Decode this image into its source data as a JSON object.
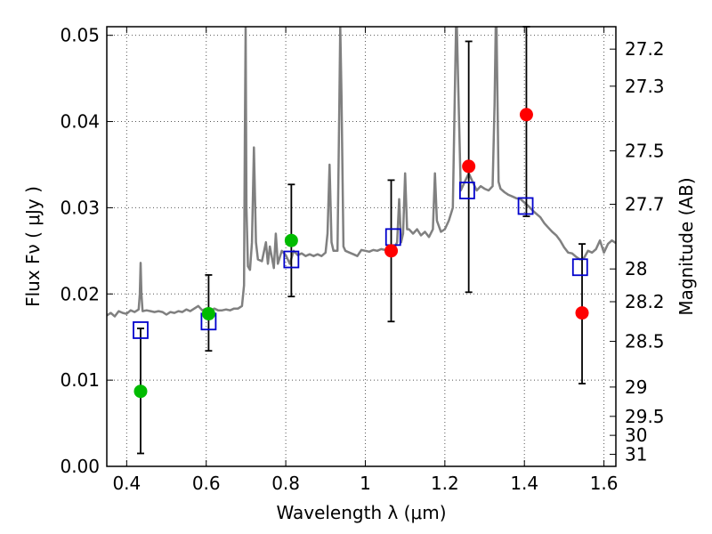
{
  "chart_data": {
    "type": "scatter",
    "xlabel": "Wavelength  λ (μm)",
    "ylabel": "Flux  Fν  ( μJy )",
    "ylabel_right": "Magnitude (AB)",
    "xlim": [
      0.35,
      1.63
    ],
    "ylim": [
      0.0,
      0.051
    ],
    "x_ticks": [
      0.4,
      0.6,
      0.8,
      1.0,
      1.2,
      1.4,
      1.6
    ],
    "x_tick_labels": [
      "0.4",
      "0.6",
      "0.8",
      "1",
      "1.2",
      "1.4",
      "1.6"
    ],
    "y_ticks": [
      0.0,
      0.01,
      0.02,
      0.03,
      0.04,
      0.05
    ],
    "y_tick_labels": [
      "0.00",
      "0.01",
      "0.02",
      "0.03",
      "0.04",
      "0.05"
    ],
    "right_ticks": [
      {
        "flux": 0.0484,
        "label": "27.2"
      },
      {
        "flux": 0.0441,
        "label": "27.3"
      },
      {
        "flux": 0.0366,
        "label": "27.5"
      },
      {
        "flux": 0.0304,
        "label": "27.7"
      },
      {
        "flux": 0.0229,
        "label": "28"
      },
      {
        "flux": 0.0191,
        "label": "28.2"
      },
      {
        "flux": 0.0145,
        "label": "28.5"
      },
      {
        "flux": 0.0092,
        "label": "29"
      },
      {
        "flux": 0.0058,
        "label": "29.5"
      },
      {
        "flux": 0.0036,
        "label": "30"
      },
      {
        "flux": 0.0014,
        "label": "31"
      }
    ],
    "grid": true,
    "colors": {
      "model": "#808080",
      "green": "#00bb00",
      "red": "#ff0000",
      "box": "#0000cc",
      "errorbar": "#000000"
    },
    "series": [
      {
        "marker": "circle-green",
        "points": [
          {
            "x": 0.435,
            "y": 0.0087,
            "yerr_low": 0.0015,
            "yerr_high": 0.016
          },
          {
            "x": 0.606,
            "y": 0.0177,
            "yerr_low": 0.0134,
            "yerr_high": 0.0222
          },
          {
            "x": 0.814,
            "y": 0.0262,
            "yerr_low": 0.0197,
            "yerr_high": 0.0327
          }
        ]
      },
      {
        "marker": "circle-red",
        "points": [
          {
            "x": 1.065,
            "y": 0.025,
            "yerr_low": 0.0168,
            "yerr_high": 0.0332
          },
          {
            "x": 1.26,
            "y": 0.0348,
            "yerr_low": 0.0202,
            "yerr_high": 0.0493
          },
          {
            "x": 1.405,
            "y": 0.0408,
            "yerr_low": 0.029,
            "yerr_high": 0.051
          },
          {
            "x": 1.545,
            "y": 0.0178,
            "yerr_low": 0.0096,
            "yerr_high": 0.0258
          }
        ]
      },
      {
        "marker": "square-open-blue",
        "points": [
          {
            "x": 0.435,
            "y": 0.0158
          },
          {
            "x": 0.606,
            "y": 0.0168
          },
          {
            "x": 0.814,
            "y": 0.024
          },
          {
            "x": 1.07,
            "y": 0.0266
          },
          {
            "x": 1.256,
            "y": 0.032
          },
          {
            "x": 1.403,
            "y": 0.0302
          },
          {
            "x": 1.54,
            "y": 0.0231
          }
        ]
      }
    ],
    "model_spectrum": [
      [
        0.35,
        0.0175
      ],
      [
        0.36,
        0.0178
      ],
      [
        0.37,
        0.0174
      ],
      [
        0.38,
        0.018
      ],
      [
        0.39,
        0.0178
      ],
      [
        0.4,
        0.0177
      ],
      [
        0.41,
        0.0181
      ],
      [
        0.42,
        0.0179
      ],
      [
        0.43,
        0.0182
      ],
      [
        0.433,
        0.02
      ],
      [
        0.435,
        0.0236
      ],
      [
        0.437,
        0.02
      ],
      [
        0.44,
        0.018
      ],
      [
        0.45,
        0.0181
      ],
      [
        0.46,
        0.018
      ],
      [
        0.47,
        0.0179
      ],
      [
        0.48,
        0.018
      ],
      [
        0.49,
        0.0179
      ],
      [
        0.5,
        0.0176
      ],
      [
        0.51,
        0.0179
      ],
      [
        0.52,
        0.0178
      ],
      [
        0.53,
        0.018
      ],
      [
        0.54,
        0.0179
      ],
      [
        0.55,
        0.0182
      ],
      [
        0.56,
        0.018
      ],
      [
        0.57,
        0.0183
      ],
      [
        0.58,
        0.0186
      ],
      [
        0.59,
        0.0181
      ],
      [
        0.6,
        0.0183
      ],
      [
        0.61,
        0.018
      ],
      [
        0.62,
        0.0183
      ],
      [
        0.63,
        0.0181
      ],
      [
        0.64,
        0.0181
      ],
      [
        0.65,
        0.0182
      ],
      [
        0.66,
        0.0181
      ],
      [
        0.67,
        0.0183
      ],
      [
        0.68,
        0.0183
      ],
      [
        0.69,
        0.0186
      ],
      [
        0.695,
        0.021
      ],
      [
        0.697,
        0.038
      ],
      [
        0.699,
        0.051
      ],
      [
        0.701,
        0.03
      ],
      [
        0.705,
        0.0232
      ],
      [
        0.71,
        0.0228
      ],
      [
        0.715,
        0.026
      ],
      [
        0.72,
        0.037
      ],
      [
        0.725,
        0.026
      ],
      [
        0.73,
        0.024
      ],
      [
        0.74,
        0.0238
      ],
      [
        0.75,
        0.026
      ],
      [
        0.755,
        0.0235
      ],
      [
        0.76,
        0.0255
      ],
      [
        0.77,
        0.023
      ],
      [
        0.775,
        0.027
      ],
      [
        0.78,
        0.0235
      ],
      [
        0.79,
        0.025
      ],
      [
        0.8,
        0.0245
      ],
      [
        0.81,
        0.0235
      ],
      [
        0.82,
        0.025
      ],
      [
        0.83,
        0.0245
      ],
      [
        0.84,
        0.0247
      ],
      [
        0.85,
        0.0244
      ],
      [
        0.86,
        0.0246
      ],
      [
        0.87,
        0.0244
      ],
      [
        0.88,
        0.0246
      ],
      [
        0.89,
        0.0244
      ],
      [
        0.9,
        0.0248
      ],
      [
        0.905,
        0.027
      ],
      [
        0.91,
        0.035
      ],
      [
        0.915,
        0.026
      ],
      [
        0.92,
        0.025
      ],
      [
        0.93,
        0.025
      ],
      [
        0.935,
        0.043
      ],
      [
        0.937,
        0.051
      ],
      [
        0.94,
        0.043
      ],
      [
        0.945,
        0.0255
      ],
      [
        0.95,
        0.025
      ],
      [
        0.96,
        0.0248
      ],
      [
        0.97,
        0.0246
      ],
      [
        0.98,
        0.0244
      ],
      [
        0.99,
        0.0251
      ],
      [
        1.0,
        0.025
      ],
      [
        1.01,
        0.0249
      ],
      [
        1.02,
        0.0251
      ],
      [
        1.03,
        0.025
      ],
      [
        1.04,
        0.0252
      ],
      [
        1.05,
        0.0251
      ],
      [
        1.06,
        0.0251
      ],
      [
        1.07,
        0.025
      ],
      [
        1.08,
        0.026
      ],
      [
        1.085,
        0.031
      ],
      [
        1.09,
        0.026
      ],
      [
        1.095,
        0.027
      ],
      [
        1.1,
        0.034
      ],
      [
        1.105,
        0.0275
      ],
      [
        1.11,
        0.0275
      ],
      [
        1.12,
        0.027
      ],
      [
        1.13,
        0.0275
      ],
      [
        1.14,
        0.0268
      ],
      [
        1.15,
        0.0272
      ],
      [
        1.16,
        0.0266
      ],
      [
        1.17,
        0.0275
      ],
      [
        1.175,
        0.034
      ],
      [
        1.18,
        0.0285
      ],
      [
        1.19,
        0.0272
      ],
      [
        1.2,
        0.0275
      ],
      [
        1.21,
        0.0285
      ],
      [
        1.22,
        0.03
      ],
      [
        1.225,
        0.043
      ],
      [
        1.228,
        0.051
      ],
      [
        1.23,
        0.051
      ],
      [
        1.24,
        0.032
      ],
      [
        1.25,
        0.033
      ],
      [
        1.26,
        0.034
      ],
      [
        1.27,
        0.033
      ],
      [
        1.28,
        0.032
      ],
      [
        1.29,
        0.0325
      ],
      [
        1.3,
        0.0322
      ],
      [
        1.31,
        0.032
      ],
      [
        1.32,
        0.0325
      ],
      [
        1.325,
        0.042
      ],
      [
        1.328,
        0.051
      ],
      [
        1.33,
        0.051
      ],
      [
        1.335,
        0.033
      ],
      [
        1.34,
        0.0322
      ],
      [
        1.35,
        0.0318
      ],
      [
        1.36,
        0.0315
      ],
      [
        1.37,
        0.0313
      ],
      [
        1.38,
        0.0311
      ],
      [
        1.39,
        0.031
      ],
      [
        1.4,
        0.0306
      ],
      [
        1.41,
        0.0302
      ],
      [
        1.42,
        0.0297
      ],
      [
        1.43,
        0.0293
      ],
      [
        1.44,
        0.0289
      ],
      [
        1.45,
        0.0282
      ],
      [
        1.46,
        0.0277
      ],
      [
        1.47,
        0.0272
      ],
      [
        1.48,
        0.0268
      ],
      [
        1.49,
        0.0262
      ],
      [
        1.5,
        0.0254
      ],
      [
        1.51,
        0.0248
      ],
      [
        1.52,
        0.0247
      ],
      [
        1.53,
        0.0243
      ],
      [
        1.54,
        0.024
      ],
      [
        1.55,
        0.0242
      ],
      [
        1.56,
        0.025
      ],
      [
        1.57,
        0.0248
      ],
      [
        1.58,
        0.0252
      ],
      [
        1.59,
        0.0262
      ],
      [
        1.6,
        0.0248
      ],
      [
        1.61,
        0.0258
      ],
      [
        1.62,
        0.0262
      ],
      [
        1.63,
        0.0259
      ]
    ]
  }
}
